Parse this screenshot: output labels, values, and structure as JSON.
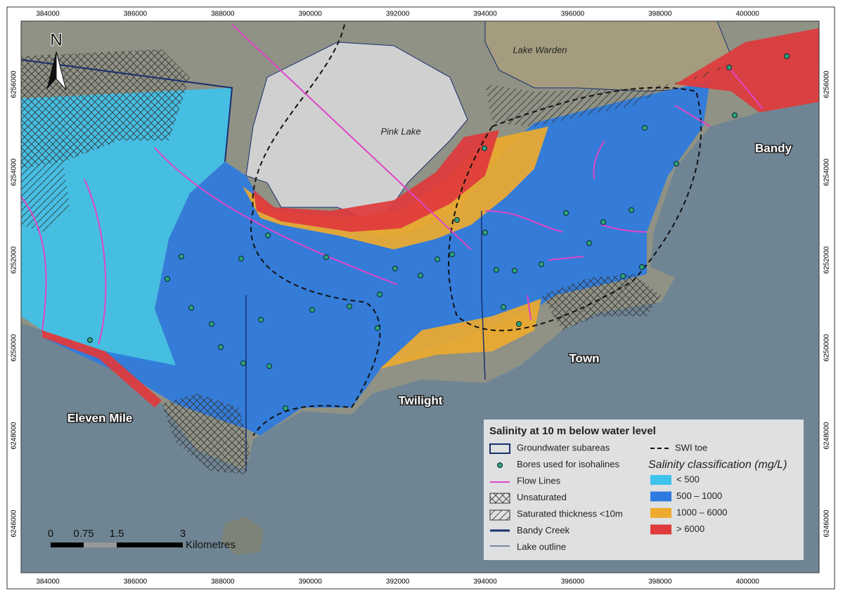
{
  "map": {
    "eastings": [
      384000,
      386000,
      388000,
      390000,
      392000,
      394000,
      396000,
      398000,
      400000
    ],
    "northings": [
      6256000,
      6254000,
      6252000,
      6250000,
      6248000,
      6246000
    ],
    "north_label": "N",
    "places": {
      "lake_warden": "Lake Warden",
      "pink_lake": "Pink Lake",
      "bandy": "Bandy",
      "town": "Town",
      "twilight": "Twilight",
      "eleven_mile": "Eleven Mile"
    },
    "scale": {
      "ticks": [
        "0",
        "0.75",
        "1.5",
        "3"
      ],
      "unit": "Kilometres"
    },
    "legend": {
      "title": "Salinity at 10 m below water level",
      "items": [
        "Groundwater subareas",
        "Bores used for isohalines",
        "Flow Lines",
        "Unsaturated",
        "Saturated thickness <10m",
        "Bandy Creek",
        "Lake outline"
      ],
      "swi": "SWI toe",
      "class_title": "Salinity classification (mg/L)",
      "classes": [
        {
          "label": "< 500",
          "color": "#3ec3ec"
        },
        {
          "label": "500 – 1000",
          "color": "#2d7be0"
        },
        {
          "label": "1000 – 6000",
          "color": "#eeaa2e"
        },
        {
          "label": "> 6000",
          "color": "#e03a3c"
        }
      ]
    }
  }
}
